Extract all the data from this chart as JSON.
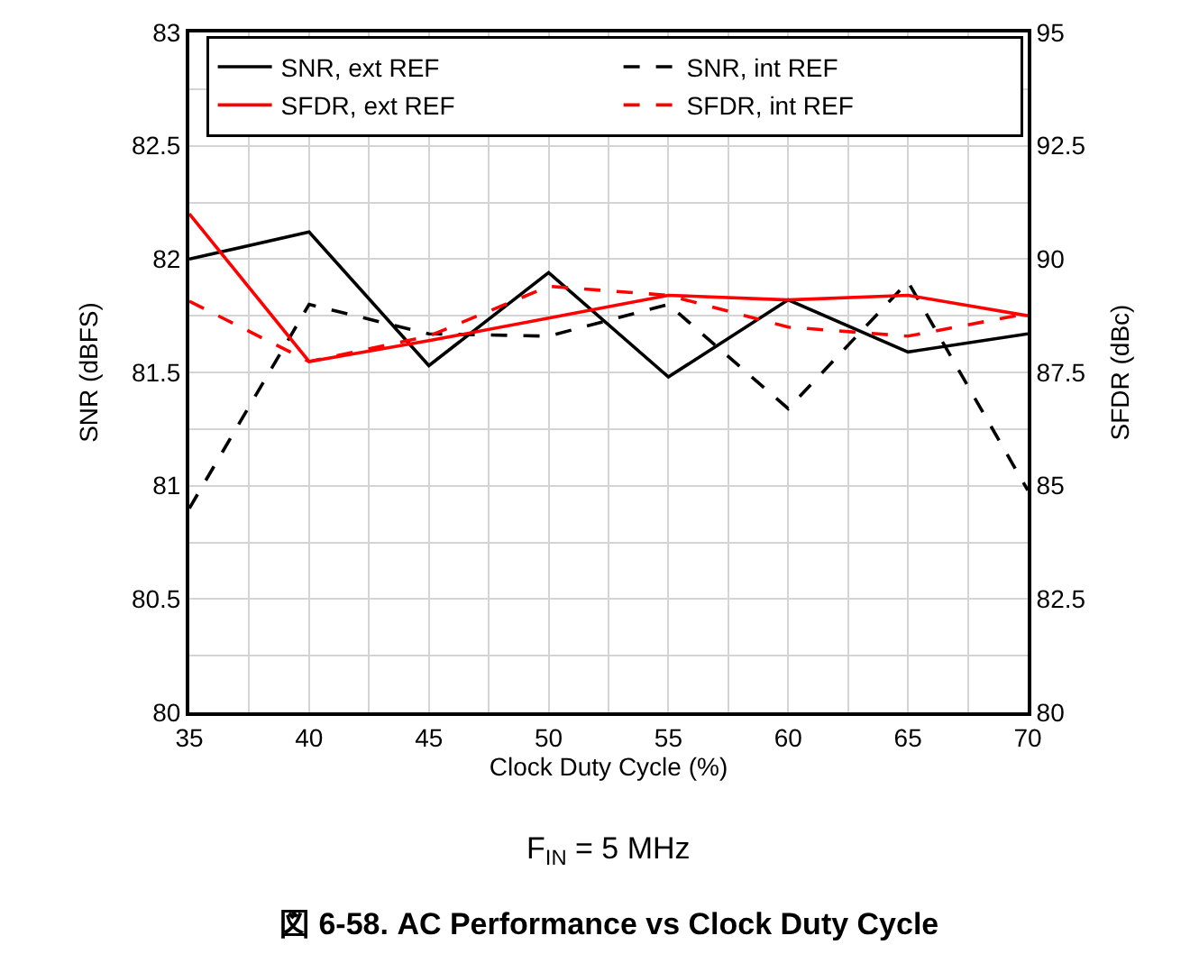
{
  "chart_data": {
    "type": "line",
    "xlabel": "Clock Duty Cycle (%)",
    "ylabel": "SNR (dBFS)",
    "y2label": "SFDR (dBc)",
    "x": [
      35,
      40,
      45,
      50,
      55,
      60,
      65,
      70
    ],
    "series": [
      {
        "name": "SNR, ext REF",
        "color": "#000000",
        "line_style": "solid",
        "values": [
          82.0,
          82.12,
          81.53,
          81.94,
          81.48,
          81.82,
          81.59,
          81.67
        ]
      },
      {
        "name": "SNR, int REF",
        "color": "#000000",
        "line_style": "dashed",
        "values": [
          80.9,
          81.8,
          81.67,
          81.66,
          81.8,
          81.34,
          81.9,
          80.98
        ]
      },
      {
        "name": "SFDR, ext REF",
        "color": "#ff0000",
        "line_style": "solid",
        "axis": "y2",
        "values": [
          91.0,
          87.74,
          88.2,
          88.7,
          89.2,
          89.1,
          89.2,
          88.75
        ]
      },
      {
        "name": "SFDR, int REF",
        "color": "#ff0000",
        "line_style": "dashed",
        "axis": "y2",
        "values": [
          89.07,
          87.74,
          88.3,
          89.4,
          89.2,
          88.5,
          88.3,
          88.8
        ]
      }
    ],
    "xlim": [
      35,
      70
    ],
    "xticks": [
      35,
      {
        "value": 37.5,
        "label": null
      },
      40,
      {
        "value": 42.5,
        "label": null
      },
      45,
      {
        "value": 47.5,
        "label": null
      },
      50,
      {
        "value": 52.5,
        "label": null
      },
      55,
      {
        "value": 57.5,
        "label": null
      },
      60,
      {
        "value": 62.5,
        "label": null
      },
      65,
      {
        "value": 67.5,
        "label": null
      },
      70
    ],
    "ylim": [
      80,
      83
    ],
    "yticks": [
      80,
      {
        "value": 80.25,
        "label": null
      },
      80.5,
      {
        "value": 80.75,
        "label": null
      },
      81,
      {
        "value": 81.25,
        "label": null
      },
      81.5,
      {
        "value": 81.75,
        "label": null
      },
      82,
      {
        "value": 82.25,
        "label": null
      },
      82.5,
      {
        "value": 82.75,
        "label": null
      },
      83
    ],
    "y2lim": [
      80,
      95
    ],
    "y2ticks": [
      80,
      82.5,
      85,
      87.5,
      90,
      92.5,
      95
    ],
    "grid": true,
    "legend": "top left",
    "marker": "none",
    "annotations": [
      "F$_{IN}$ = 5 MHz",
      "図 6-58. AC Performance vs Clock Duty Cycle"
    ]
  }
}
